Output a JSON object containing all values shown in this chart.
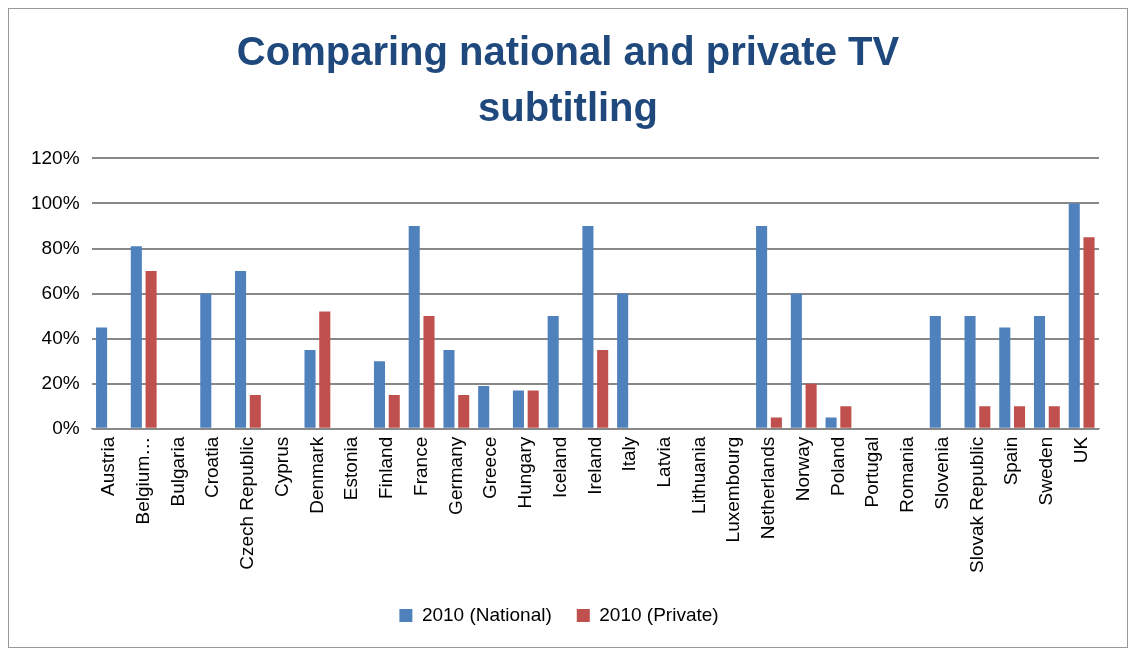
{
  "chart_data": {
    "type": "bar",
    "title": "Comparing national and private TV subtitling",
    "categories": [
      "Austria",
      "Belgium…",
      "Bulgaria",
      "Croatia",
      "Czech Republic",
      "Cyprus",
      "Denmark",
      "Estonia",
      "Finland",
      "France",
      "Germany",
      "Greece",
      "Hungary",
      "Iceland",
      "Ireland",
      "Italy",
      "Latvia",
      "Lithuania",
      "Luxembourg",
      "Netherlands",
      "Norway",
      "Poland",
      "Portugal",
      "Romania",
      "Slovenia",
      "Slovak Republic",
      "Spain",
      "Sweden",
      "UK"
    ],
    "series": [
      {
        "name": "2010 (National)",
        "color": "#4f81bd",
        "values": [
          45,
          81,
          null,
          60,
          70,
          null,
          35,
          null,
          30,
          90,
          35,
          19,
          17,
          50,
          90,
          60,
          null,
          null,
          null,
          90,
          60,
          5,
          null,
          null,
          50,
          50,
          45,
          50,
          100
        ]
      },
      {
        "name": "2010 (Private)",
        "color": "#c0504d",
        "values": [
          null,
          70,
          null,
          null,
          15,
          null,
          52,
          null,
          15,
          50,
          15,
          null,
          17,
          null,
          35,
          null,
          null,
          null,
          null,
          5,
          20,
          10,
          null,
          null,
          null,
          10,
          10,
          10,
          85
        ]
      }
    ],
    "ylim": [
      0,
      120
    ],
    "yticks": [
      {
        "value": 0,
        "label": "0%"
      },
      {
        "value": 20,
        "label": "20%"
      },
      {
        "value": 40,
        "label": "40%"
      },
      {
        "value": 60,
        "label": "60%"
      },
      {
        "value": 80,
        "label": "80%"
      },
      {
        "value": 100,
        "label": "100%"
      },
      {
        "value": 120,
        "label": "120%"
      }
    ],
    "grid": "y",
    "legend": "bottom"
  }
}
